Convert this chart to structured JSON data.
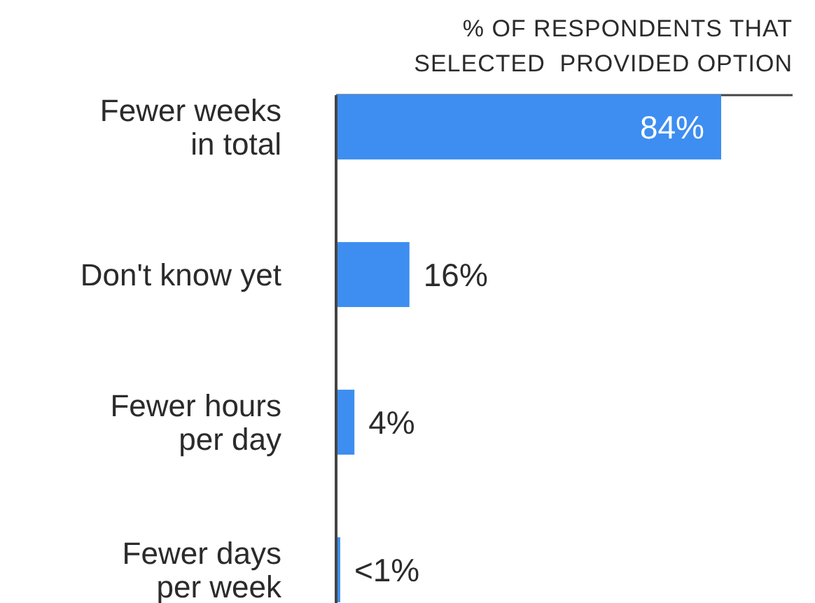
{
  "chart_data": {
    "type": "bar",
    "orientation": "horizontal",
    "title": "% OF RESPONDENTS THAT\nSELECTED  PROVIDED OPTION",
    "categories": [
      "Fewer weeks\nin total",
      "Don't know yet",
      "Fewer hours\nper day",
      "Fewer days\nper week"
    ],
    "values": [
      84,
      16,
      4,
      0.9
    ],
    "value_labels": [
      "84%",
      "16%",
      "4%",
      "<1%"
    ],
    "color": "#3d8ef0"
  }
}
